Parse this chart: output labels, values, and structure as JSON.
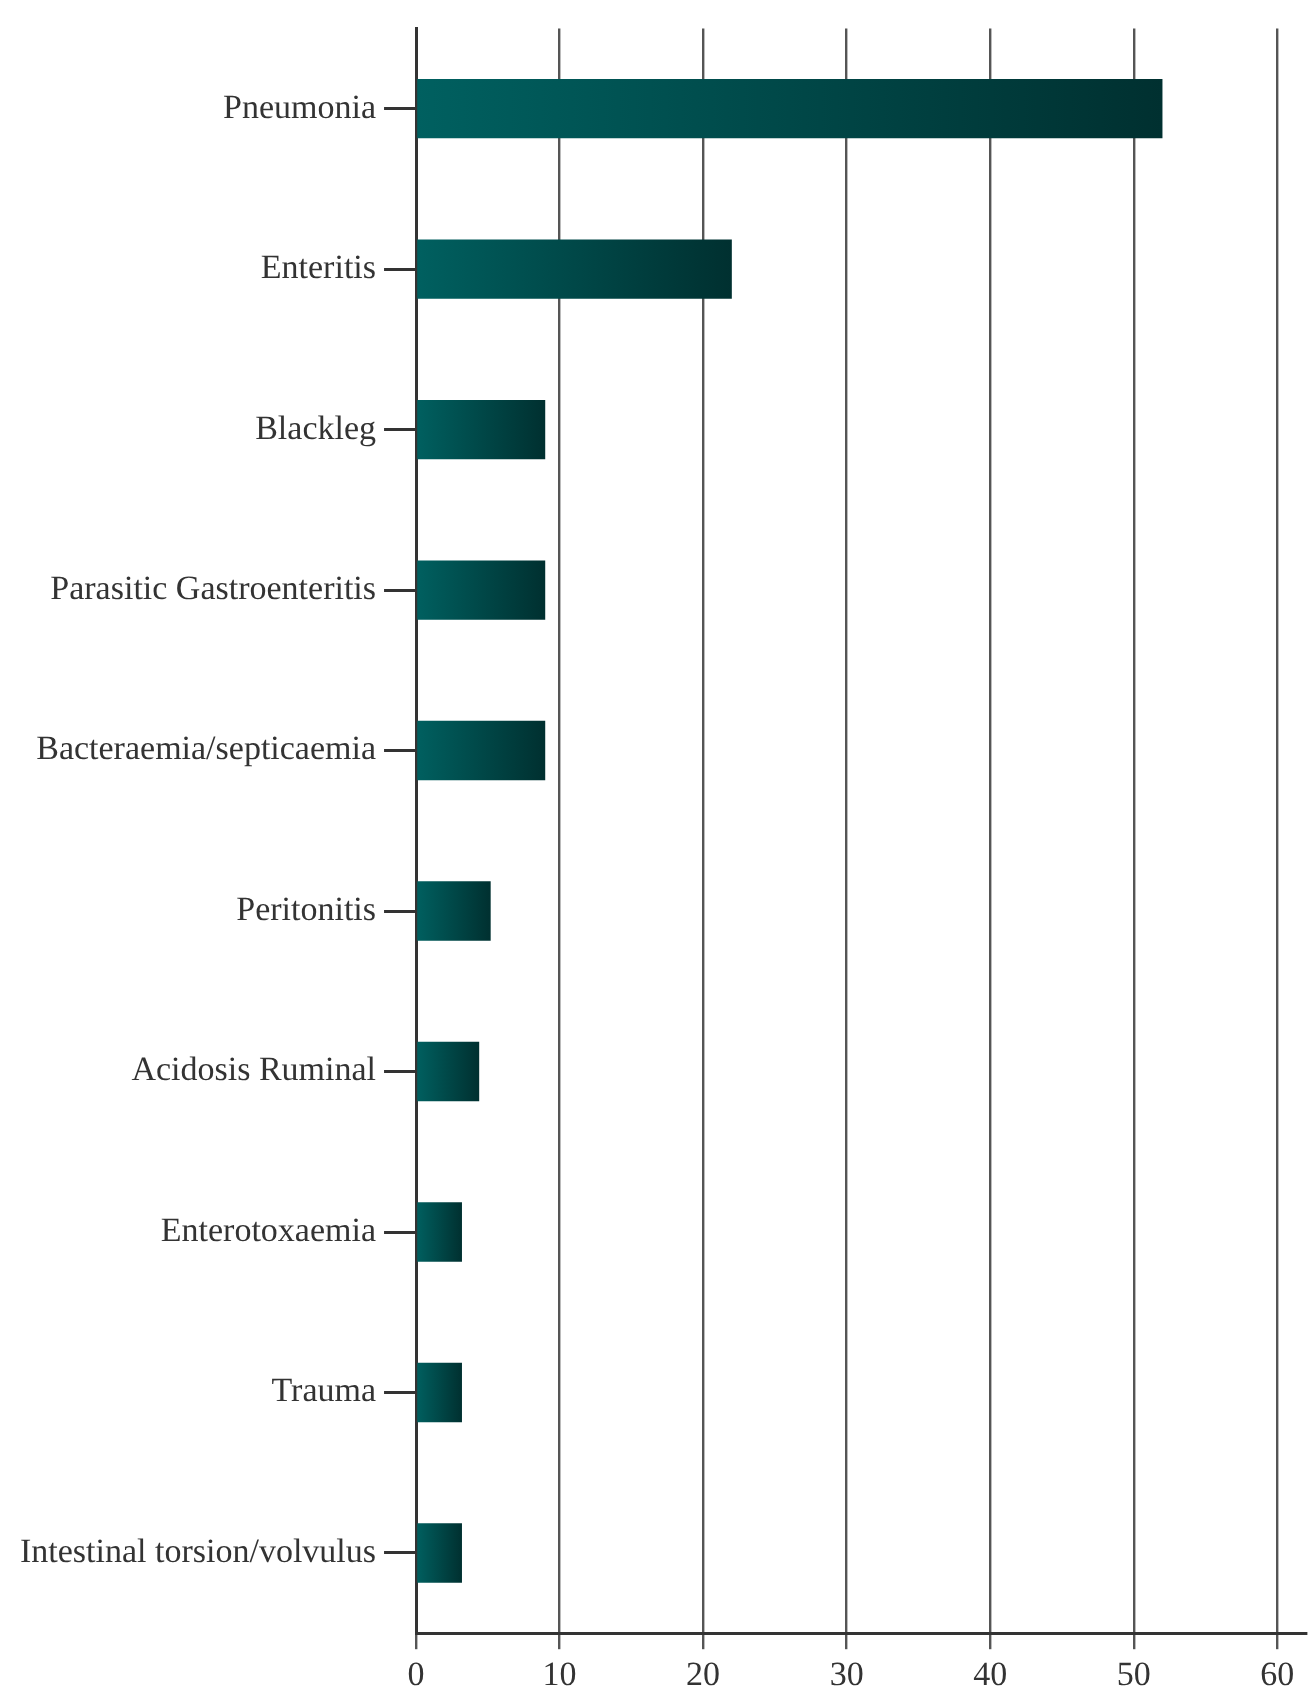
{
  "chart_data": {
    "type": "bar",
    "orientation": "horizontal",
    "categories": [
      "Pneumonia",
      "Enteritis",
      "Blackleg",
      "Parasitic Gastroenteritis",
      "Bacteraemia/septicaemia",
      "Peritonitis",
      "Acidosis Ruminal",
      "Enterotoxaemia",
      "Trauma",
      "Intestinal torsion/volvulus"
    ],
    "values": [
      52,
      22,
      9,
      9,
      9,
      5.2,
      4.4,
      3.2,
      3.2,
      3.2
    ],
    "color": "#006060",
    "xlim": [
      0,
      62
    ],
    "xticks": [
      0,
      10,
      20,
      30,
      40,
      50,
      60
    ],
    "grid": "x"
  }
}
